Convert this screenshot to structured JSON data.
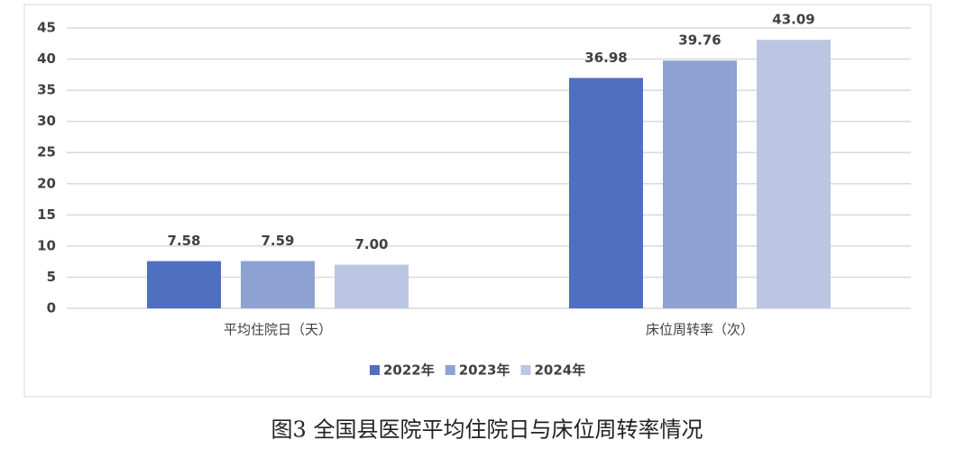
{
  "chart_data": {
    "type": "bar",
    "caption": "图3  全国县医院平均住院日与床位周转率情况",
    "categories": [
      "平均住院日（天）",
      "床位周转率（次）"
    ],
    "series": [
      {
        "name": "2022年",
        "color": "#4f6fbf",
        "values": [
          7.58,
          36.98
        ],
        "value_labels": [
          "7.58",
          "36.98"
        ]
      },
      {
        "name": "2023年",
        "color": "#8fa2d4",
        "values": [
          7.59,
          39.76
        ],
        "value_labels": [
          "7.59",
          "39.76"
        ]
      },
      {
        "name": "2024年",
        "color": "#bcc5e1",
        "values": [
          7,
          43.09
        ],
        "value_labels": [
          "7.00",
          "43.09"
        ]
      }
    ],
    "ylim": [
      0,
      45
    ],
    "yticks": [
      0,
      5,
      10,
      15,
      20,
      25,
      30,
      35,
      40,
      45
    ],
    "grid": true,
    "legend": "bottom"
  }
}
